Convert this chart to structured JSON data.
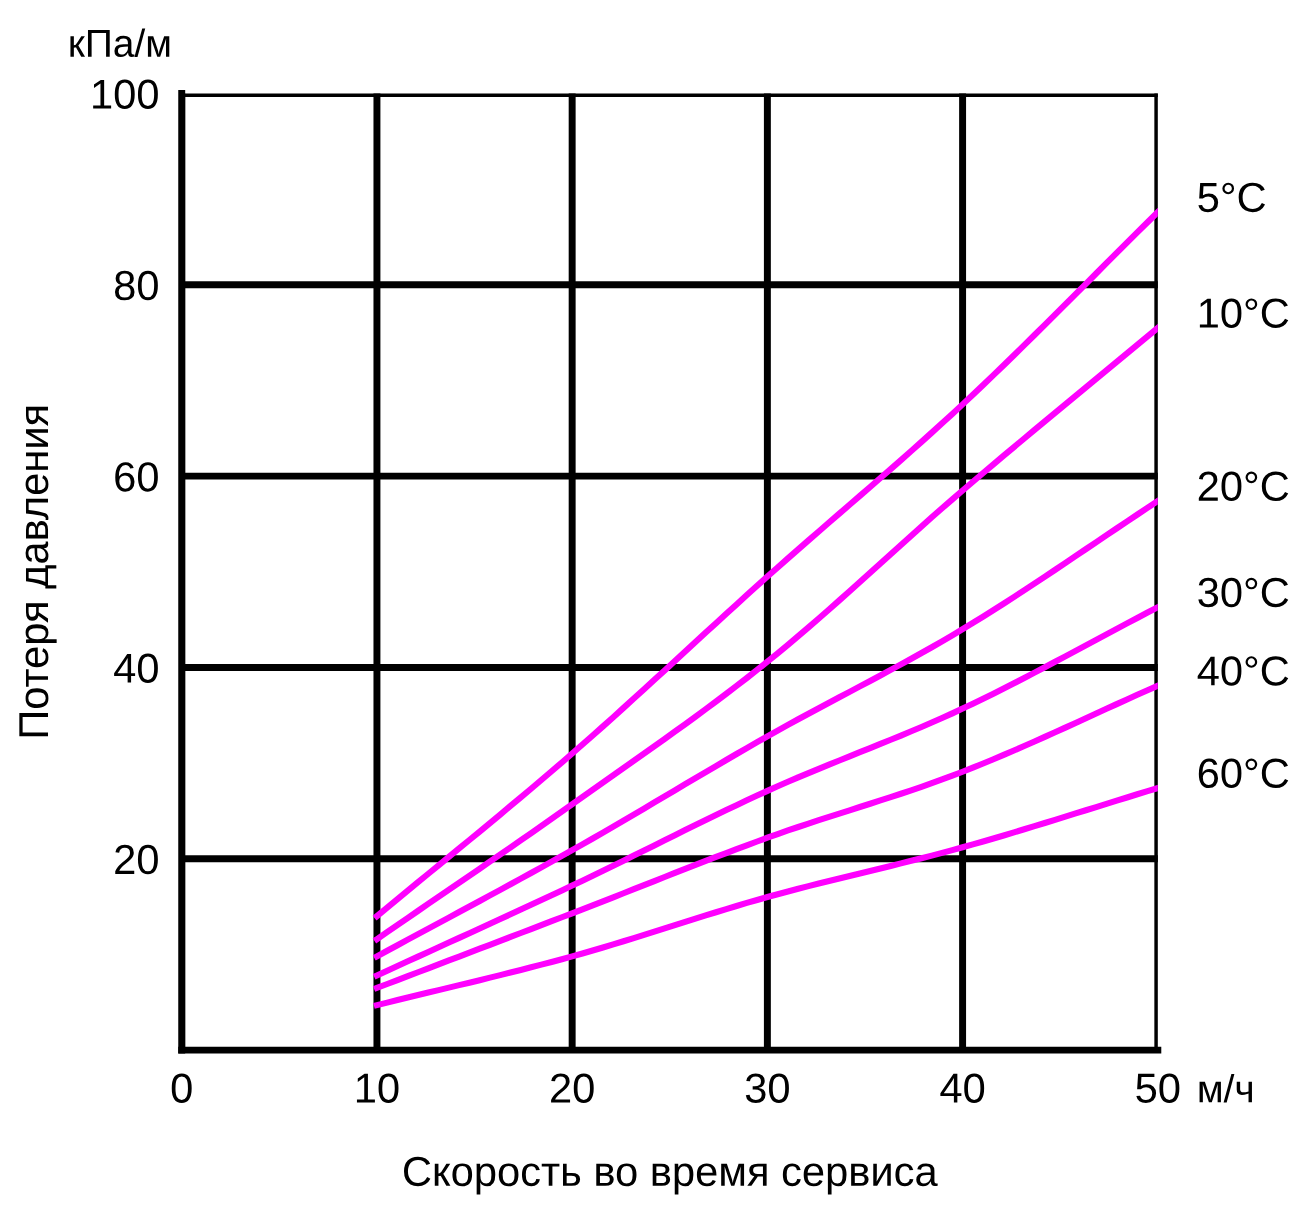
{
  "chart_data": {
    "type": "line",
    "xlabel": "Скорость во время сервиса",
    "ylabel": "Потеря давления",
    "annotations": [
      "кПа/м",
      "м/ч"
    ],
    "x": [
      10,
      20,
      30,
      40,
      50
    ],
    "series": [
      {
        "name": "5°C",
        "color": "#ff00ff",
        "values": [
          14.0,
          31.0,
          49.5,
          67.5,
          87.6
        ]
      },
      {
        "name": "10°C",
        "color": "#ff00ff",
        "values": [
          11.6,
          25.7,
          40.6,
          58.5,
          75.5
        ]
      },
      {
        "name": "20°C",
        "color": "#ff00ff",
        "values": [
          9.8,
          20.9,
          32.8,
          44.0,
          57.4
        ]
      },
      {
        "name": "30°C",
        "color": "#ff00ff",
        "values": [
          7.8,
          17.2,
          27.1,
          35.7,
          46.3
        ]
      },
      {
        "name": "40°C",
        "color": "#ff00ff",
        "values": [
          6.5,
          14.3,
          22.2,
          29.1,
          38.1
        ]
      },
      {
        "name": "60°C",
        "color": "#ff00ff",
        "values": [
          4.7,
          9.8,
          16.0,
          21.2,
          27.4
        ]
      }
    ],
    "xlim": [
      0,
      50
    ],
    "ylim": [
      0,
      100
    ],
    "xticks": [
      0,
      10,
      20,
      30,
      40,
      50
    ],
    "yticks": [
      20,
      40,
      60,
      80,
      100
    ],
    "grid": true,
    "legend": false,
    "marker": "none",
    "line_style": "solid"
  }
}
